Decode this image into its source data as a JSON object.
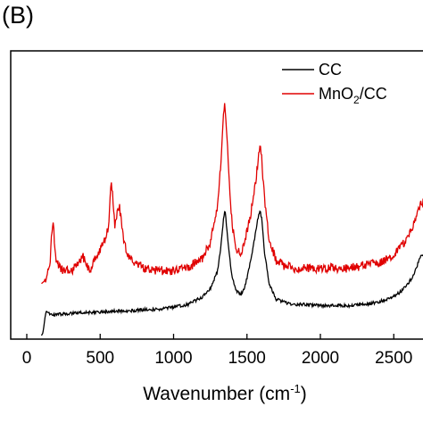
{
  "panel_label": "(B)",
  "chart_data": {
    "type": "line",
    "title": "",
    "xlabel": "Wavenumber (cm⁻¹)",
    "xlabel_base": "Wavenumber (cm",
    "xlabel_sup": "-1",
    "xlabel_tail": ")",
    "ylabel": "",
    "xlim": [
      0,
      2800
    ],
    "ylim": [
      0,
      1
    ],
    "xticks": [
      0,
      500,
      1000,
      1500,
      2000,
      2500
    ],
    "xtick_labels": [
      "0",
      "500",
      "1000",
      "1500",
      "2000",
      "2500"
    ],
    "grid": false,
    "legend_position": "top-right",
    "series": [
      {
        "name": "CC",
        "legend_base": "CC",
        "color": "#000000",
        "x": [
          100,
          110,
          120,
          130,
          150,
          200,
          300,
          400,
          500,
          600,
          700,
          800,
          900,
          1000,
          1100,
          1200,
          1250,
          1300,
          1320,
          1340,
          1350,
          1360,
          1380,
          1400,
          1430,
          1460,
          1480,
          1500,
          1530,
          1560,
          1580,
          1590,
          1600,
          1620,
          1650,
          1700,
          1750,
          1800,
          1900,
          2000,
          2100,
          2200,
          2300,
          2400,
          2500,
          2550,
          2600,
          2630,
          2660,
          2680,
          2700,
          2720,
          2750,
          2780,
          2800
        ],
        "y": [
          0.0,
          0.01,
          0.05,
          0.09,
          0.085,
          0.08,
          0.085,
          0.09,
          0.09,
          0.095,
          0.095,
          0.1,
          0.1,
          0.11,
          0.12,
          0.15,
          0.18,
          0.25,
          0.33,
          0.45,
          0.49,
          0.43,
          0.31,
          0.22,
          0.17,
          0.16,
          0.18,
          0.22,
          0.3,
          0.4,
          0.47,
          0.48,
          0.45,
          0.32,
          0.2,
          0.14,
          0.13,
          0.12,
          0.12,
          0.115,
          0.115,
          0.115,
          0.12,
          0.13,
          0.15,
          0.17,
          0.2,
          0.23,
          0.27,
          0.3,
          0.31,
          0.29,
          0.24,
          0.21,
          0.2
        ]
      },
      {
        "name": "MnO2/CC",
        "legend_base": "MnO",
        "legend_sub": "2",
        "legend_tail": "/CC",
        "color": "#e00000",
        "x": [
          100,
          120,
          140,
          160,
          170,
          180,
          190,
          200,
          250,
          300,
          350,
          380,
          400,
          430,
          460,
          500,
          540,
          560,
          575,
          585,
          600,
          620,
          630,
          640,
          660,
          700,
          750,
          800,
          900,
          1000,
          1100,
          1200,
          1250,
          1300,
          1320,
          1340,
          1350,
          1360,
          1380,
          1400,
          1430,
          1460,
          1480,
          1500,
          1530,
          1560,
          1580,
          1590,
          1600,
          1620,
          1650,
          1700,
          1750,
          1800,
          1900,
          2000,
          2100,
          2200,
          2300,
          2400,
          2500,
          2550,
          2600,
          2630,
          2660,
          2680,
          2700,
          2720,
          2750,
          2780,
          2800
        ],
        "y": [
          0.2,
          0.21,
          0.23,
          0.28,
          0.4,
          0.45,
          0.35,
          0.28,
          0.25,
          0.25,
          0.27,
          0.31,
          0.28,
          0.25,
          0.3,
          0.33,
          0.38,
          0.43,
          0.6,
          0.55,
          0.42,
          0.48,
          0.5,
          0.46,
          0.36,
          0.3,
          0.27,
          0.26,
          0.25,
          0.25,
          0.26,
          0.3,
          0.36,
          0.5,
          0.65,
          0.85,
          0.9,
          0.8,
          0.58,
          0.42,
          0.33,
          0.32,
          0.35,
          0.4,
          0.48,
          0.6,
          0.7,
          0.72,
          0.68,
          0.52,
          0.37,
          0.29,
          0.27,
          0.26,
          0.26,
          0.26,
          0.26,
          0.26,
          0.27,
          0.28,
          0.31,
          0.34,
          0.38,
          0.42,
          0.47,
          0.5,
          0.51,
          0.48,
          0.43,
          0.39,
          0.37
        ]
      }
    ]
  }
}
